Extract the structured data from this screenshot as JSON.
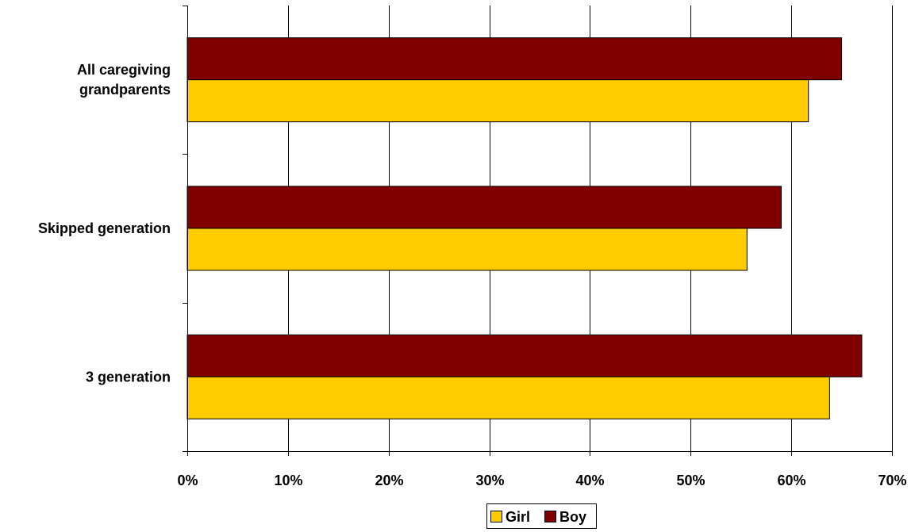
{
  "chart_data": {
    "type": "bar",
    "orientation": "horizontal",
    "categories": [
      "All caregiving grandparents",
      "Skipped generation",
      "3 generation"
    ],
    "category_label_lines": [
      [
        "All caregiving",
        "grandparents"
      ],
      [
        "Skipped generation"
      ],
      [
        "3 generation"
      ]
    ],
    "series": [
      {
        "name": "Boy",
        "color": "#800000",
        "values": [
          0.65,
          0.59,
          0.67
        ]
      },
      {
        "name": "Girl",
        "color": "#FFCC00",
        "values": [
          0.617,
          0.556,
          0.638
        ]
      }
    ],
    "xlim": [
      0,
      0.7
    ],
    "x_ticks": [
      0,
      0.1,
      0.2,
      0.3,
      0.4,
      0.5,
      0.6,
      0.7
    ],
    "x_tick_labels": [
      "0%",
      "10%",
      "20%",
      "30%",
      "40%",
      "50%",
      "60%",
      "70%"
    ],
    "grid": "vertical",
    "legend": {
      "position": "bottom",
      "order": [
        "Girl",
        "Boy"
      ]
    },
    "title": "",
    "xlabel": "",
    "ylabel": ""
  }
}
